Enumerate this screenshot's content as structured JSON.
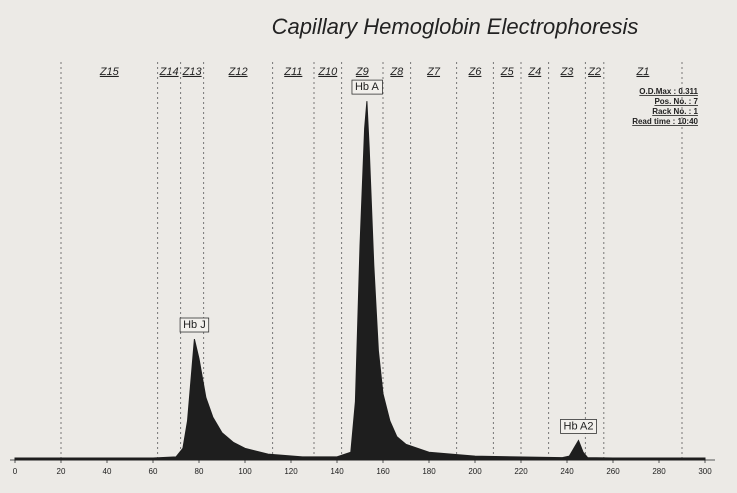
{
  "chart_data": {
    "type": "area",
    "title": "Capillary Hemoglobin Electrophoresis",
    "x": [
      0,
      60,
      70,
      73,
      75,
      77,
      78,
      80,
      83,
      86,
      90,
      95,
      100,
      110,
      125,
      140,
      146,
      148,
      150,
      152,
      153,
      154,
      156,
      158,
      160,
      163,
      166,
      170,
      180,
      200,
      238,
      241,
      243,
      245,
      247,
      249,
      260,
      300
    ],
    "series": [
      {
        "color": "#1e1e1e",
        "values": [
          0.5,
          0.5,
          0.8,
          3,
          10,
          24,
          31,
          26,
          16,
          11,
          7,
          4.5,
          3,
          1.5,
          0.8,
          0.8,
          2,
          15,
          55,
          85,
          92,
          80,
          50,
          28,
          17,
          10,
          6,
          4,
          2,
          1,
          0.6,
          1,
          3,
          5,
          2,
          0.6,
          0.5,
          0.5
        ]
      }
    ],
    "xlim": [
      0,
      300
    ],
    "xticks": [
      0,
      20,
      40,
      60,
      80,
      100,
      120,
      140,
      160,
      180,
      200,
      220,
      240,
      260,
      280,
      300
    ],
    "ylim": [
      0,
      100
    ],
    "zones": [
      "Z15",
      "Z14",
      "Z13",
      "Z12",
      "Z11",
      "Z10",
      "Z9",
      "Z8",
      "Z7",
      "Z6",
      "Z5",
      "Z4",
      "Z3",
      "Z2",
      "Z1"
    ],
    "zone_boundaries": [
      20,
      62,
      72,
      82,
      112,
      130,
      142,
      160,
      172,
      192,
      208,
      220,
      232,
      248,
      256,
      290
    ],
    "annotations": [
      {
        "label": "Hb J",
        "x": 78,
        "y": 31
      },
      {
        "label": "Hb A",
        "x": 153,
        "y": 92
      },
      {
        "label": "Hb A2",
        "x": 245,
        "y": 5
      }
    ],
    "info": [
      "O.D.Max : 0.311",
      "Pos. No. : 7",
      "Rack No. : 1",
      "Read time : 10:40"
    ]
  }
}
